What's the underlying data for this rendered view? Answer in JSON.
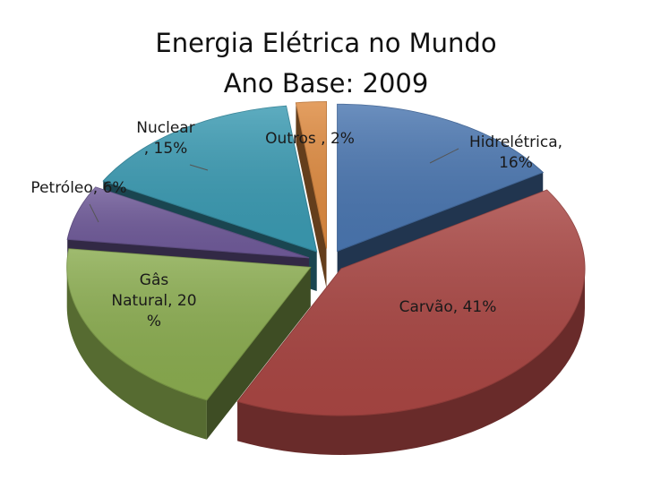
{
  "chart_data": {
    "type": "pie",
    "style": "3d-exploded",
    "title_lines": [
      "Energia Elétrica no Mundo",
      "Ano Base: 2009"
    ],
    "legend": "none",
    "slices": [
      {
        "label": "Hidrelétrica",
        "value": 16,
        "label_lines": [
          "Hidrelétrica,",
          "16%"
        ],
        "color": "#4a76b0"
      },
      {
        "label": "Carvão",
        "value": 41,
        "label_lines": [
          "Carvão, 41%"
        ],
        "color": "#a94643"
      },
      {
        "label": "Gâs Natural",
        "value": 20,
        "label_lines": [
          "Gâs",
          "Natural, 20",
          "%"
        ],
        "color": "#8aac4f"
      },
      {
        "label": "Petróleo",
        "value": 6,
        "label_lines": [
          "Petróleo, 6%"
        ],
        "color": "#6f5a99"
      },
      {
        "label": "Nuclear",
        "value": 15,
        "label_lines": [
          "Nuclear",
          ", 15%"
        ],
        "color": "#3a9ab2"
      },
      {
        "label": "Outros",
        "value": 2,
        "label_lines": [
          "Outros , 2%"
        ],
        "color": "#de8a3f"
      }
    ]
  }
}
